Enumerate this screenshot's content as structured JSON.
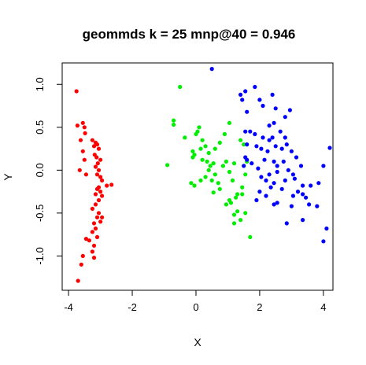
{
  "chart_data": {
    "type": "scatter",
    "title": "geommds k = 25 mnp@40 = 0.946",
    "xlabel": "X",
    "ylabel": "Y",
    "xlim": [
      -4.2,
      4.3
    ],
    "ylim": [
      -1.4,
      1.25
    ],
    "xticks": [
      -4,
      -2,
      0,
      2,
      4
    ],
    "yticks": [
      -1.0,
      -0.5,
      0.0,
      0.5,
      1.0
    ],
    "xtick_labels": [
      "-4",
      "-2",
      "0",
      "2",
      "4"
    ],
    "ytick_labels": [
      "-1.0",
      "-0.5",
      "0.0",
      "0.5",
      "1.0"
    ],
    "grid": false,
    "legend": "none",
    "colors": {
      "red": "#ff0000",
      "green": "#00ee00",
      "blue": "#0000ff"
    },
    "series": [
      {
        "color": "red",
        "points": [
          [
            -3.75,
            0.92
          ],
          [
            -3.72,
            0.52
          ],
          [
            -3.55,
            0.55
          ],
          [
            -3.5,
            0.5
          ],
          [
            -3.48,
            0.43
          ],
          [
            -3.62,
            0.35
          ],
          [
            -3.55,
            0.22
          ],
          [
            -3.5,
            0.12
          ],
          [
            -3.65,
            0.0
          ],
          [
            -3.45,
            -0.05
          ],
          [
            -3.25,
            0.35
          ],
          [
            -3.15,
            0.32
          ],
          [
            -3.1,
            0.3
          ],
          [
            -3.2,
            0.28
          ],
          [
            -3.05,
            0.25
          ],
          [
            -3.18,
            0.18
          ],
          [
            -3.12,
            0.15
          ],
          [
            -3.0,
            0.12
          ],
          [
            -3.08,
            0.08
          ],
          [
            -3.15,
            0.04
          ],
          [
            -3.05,
            0.0
          ],
          [
            -3.1,
            -0.05
          ],
          [
            -3.0,
            -0.08
          ],
          [
            -2.95,
            -0.12
          ],
          [
            -2.8,
            -0.18
          ],
          [
            -2.65,
            -0.17
          ],
          [
            -3.05,
            -0.2
          ],
          [
            -3.1,
            -0.22
          ],
          [
            -3.0,
            -0.25
          ],
          [
            -3.15,
            -0.28
          ],
          [
            -2.95,
            -0.3
          ],
          [
            -3.05,
            -0.35
          ],
          [
            -3.15,
            -0.4
          ],
          [
            -3.25,
            -0.45
          ],
          [
            -3.05,
            -0.5
          ],
          [
            -2.95,
            -0.55
          ],
          [
            -3.1,
            -0.55
          ],
          [
            -3.0,
            -0.6
          ],
          [
            -3.2,
            -0.62
          ],
          [
            -3.15,
            -0.68
          ],
          [
            -3.25,
            -0.72
          ],
          [
            -3.1,
            -0.78
          ],
          [
            -3.45,
            -0.8
          ],
          [
            -3.35,
            -0.82
          ],
          [
            -3.2,
            -0.88
          ],
          [
            -3.25,
            -0.95
          ],
          [
            -3.55,
            -1.0
          ],
          [
            -3.2,
            -1.02
          ],
          [
            -3.6,
            -1.1
          ],
          [
            -3.7,
            -1.29
          ]
        ]
      },
      {
        "color": "green",
        "points": [
          [
            -0.5,
            0.97
          ],
          [
            -0.7,
            0.58
          ],
          [
            -0.7,
            0.53
          ],
          [
            -0.35,
            0.38
          ],
          [
            -0.9,
            0.06
          ],
          [
            -0.1,
            0.15
          ],
          [
            0.05,
            0.45
          ],
          [
            0.1,
            0.5
          ],
          [
            0.0,
            0.42
          ],
          [
            0.2,
            0.35
          ],
          [
            0.3,
            0.28
          ],
          [
            0.15,
            0.25
          ],
          [
            -0.05,
            0.18
          ],
          [
            -0.1,
            0.22
          ],
          [
            0.4,
            0.2
          ],
          [
            0.6,
            0.25
          ],
          [
            0.75,
            0.32
          ],
          [
            0.35,
            0.1
          ],
          [
            0.45,
            0.05
          ],
          [
            0.55,
            0.08
          ],
          [
            0.4,
            0.0
          ],
          [
            0.6,
            -0.05
          ],
          [
            0.3,
            -0.08
          ],
          [
            0.15,
            -0.12
          ],
          [
            0.2,
            0.12
          ],
          [
            0.5,
            -0.12
          ],
          [
            0.7,
            -0.15
          ],
          [
            0.85,
            0.05
          ],
          [
            0.95,
            0.1
          ],
          [
            1.05,
            0.55
          ],
          [
            0.9,
            0.42
          ],
          [
            1.05,
            -0.02
          ],
          [
            1.15,
            -0.12
          ],
          [
            1.2,
            0.08
          ],
          [
            1.4,
            0.35
          ],
          [
            1.5,
            0.3
          ],
          [
            1.55,
            -0.05
          ],
          [
            1.6,
            0.1
          ],
          [
            1.45,
            -0.2
          ],
          [
            1.3,
            -0.28
          ],
          [
            1.25,
            -0.32
          ],
          [
            1.45,
            -0.28
          ],
          [
            1.1,
            -0.38
          ],
          [
            1.3,
            -0.48
          ],
          [
            1.2,
            -0.52
          ],
          [
            1.05,
            -0.35
          ],
          [
            0.95,
            -0.4
          ],
          [
            0.75,
            -0.22
          ],
          [
            0.55,
            -0.26
          ],
          [
            1.55,
            -0.5
          ],
          [
            1.4,
            -0.58
          ],
          [
            1.7,
            -0.78
          ],
          [
            1.2,
            -0.62
          ],
          [
            -0.05,
            -0.18
          ],
          [
            -0.15,
            -0.15
          ]
        ]
      },
      {
        "color": "blue",
        "points": [
          [
            0.5,
            1.18
          ],
          [
            1.4,
            0.88
          ],
          [
            1.55,
            0.92
          ],
          [
            1.45,
            0.82
          ],
          [
            1.85,
            0.97
          ],
          [
            2.0,
            0.82
          ],
          [
            2.4,
            0.88
          ],
          [
            2.1,
            0.75
          ],
          [
            2.5,
            0.72
          ],
          [
            1.6,
            0.68
          ],
          [
            2.8,
            0.62
          ],
          [
            2.95,
            0.7
          ],
          [
            2.45,
            0.55
          ],
          [
            2.3,
            0.52
          ],
          [
            1.85,
            0.42
          ],
          [
            1.7,
            0.45
          ],
          [
            1.55,
            0.45
          ],
          [
            2.1,
            0.38
          ],
          [
            2.3,
            0.35
          ],
          [
            2.4,
            0.38
          ],
          [
            2.65,
            0.45
          ],
          [
            2.8,
            0.38
          ],
          [
            1.6,
            0.3
          ],
          [
            1.9,
            0.28
          ],
          [
            2.05,
            0.25
          ],
          [
            2.25,
            0.22
          ],
          [
            2.5,
            0.28
          ],
          [
            2.7,
            0.25
          ],
          [
            2.85,
            0.3
          ],
          [
            3.0,
            0.22
          ],
          [
            1.55,
            0.15
          ],
          [
            1.6,
            0.12
          ],
          [
            1.75,
            0.08
          ],
          [
            1.5,
            0.05
          ],
          [
            2.15,
            0.12
          ],
          [
            2.45,
            0.1
          ],
          [
            2.55,
            0.05
          ],
          [
            2.75,
            0.1
          ],
          [
            3.15,
            0.15
          ],
          [
            3.3,
            0.05
          ],
          [
            4.2,
            0.26
          ],
          [
            1.95,
            0.02
          ],
          [
            2.05,
            -0.08
          ],
          [
            2.3,
            -0.05
          ],
          [
            2.55,
            -0.02
          ],
          [
            2.9,
            0.0
          ],
          [
            3.05,
            -0.05
          ],
          [
            2.2,
            -0.12
          ],
          [
            2.45,
            -0.15
          ],
          [
            2.8,
            -0.12
          ],
          [
            3.1,
            -0.1
          ],
          [
            4.0,
            0.05
          ],
          [
            3.35,
            -0.18
          ],
          [
            2.35,
            -0.2
          ],
          [
            2.7,
            -0.22
          ],
          [
            3.2,
            -0.25
          ],
          [
            3.35,
            -0.28
          ],
          [
            3.6,
            -0.18
          ],
          [
            3.85,
            -0.15
          ],
          [
            2.0,
            -0.25
          ],
          [
            2.2,
            -0.3
          ],
          [
            3.05,
            -0.3
          ],
          [
            3.45,
            -0.32
          ],
          [
            2.45,
            -0.4
          ],
          [
            3.0,
            -0.42
          ],
          [
            3.55,
            -0.4
          ],
          [
            3.8,
            -0.42
          ],
          [
            1.9,
            -0.35
          ],
          [
            4.1,
            -0.68
          ],
          [
            4.0,
            -0.83
          ],
          [
            2.85,
            -0.62
          ],
          [
            3.35,
            -0.58
          ],
          [
            2.55,
            -0.38
          ]
        ]
      }
    ]
  }
}
